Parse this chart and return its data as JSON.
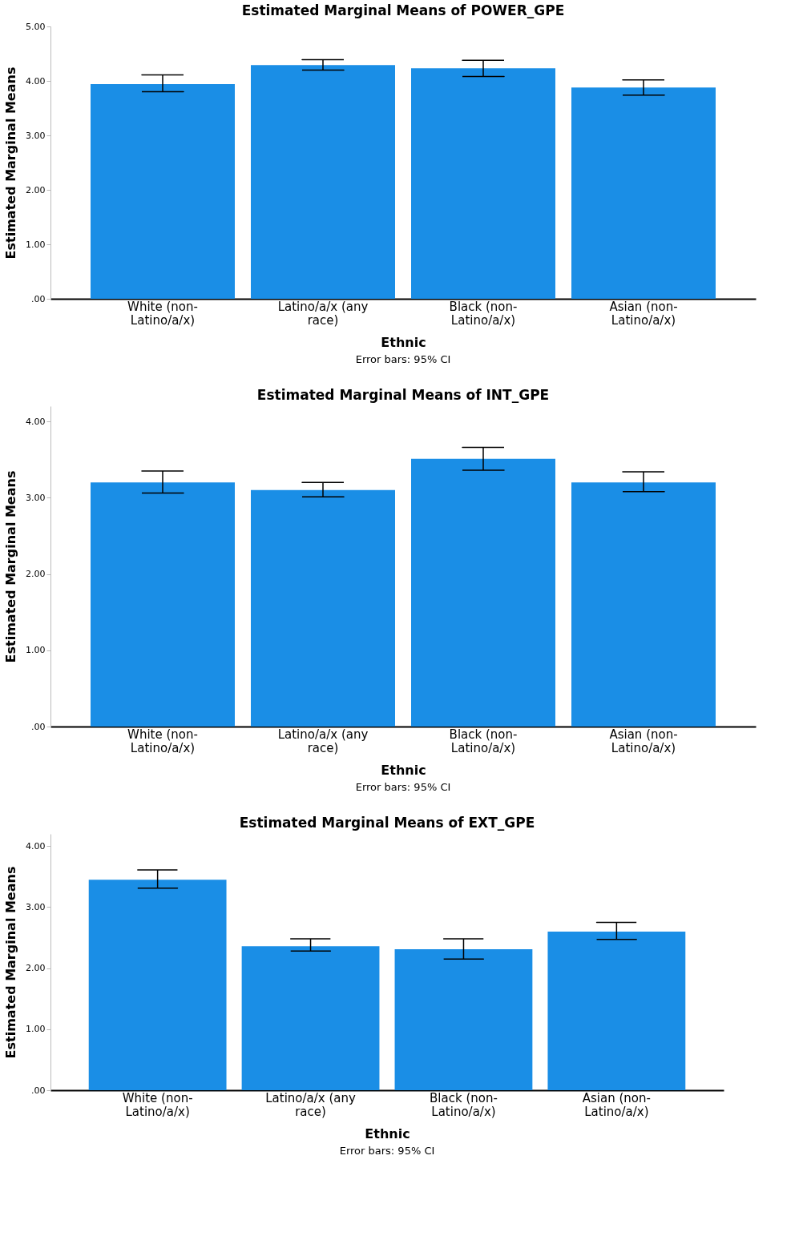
{
  "chart_data": [
    {
      "type": "bar",
      "title": "Estimated Marginal Means of POWER_GPE",
      "xlabel": "Ethnic",
      "ylabel": "Estimated Marginal Means",
      "categories": [
        "White (non-Latino/a/x)",
        "Latino/a/x (any race)",
        "Black (non-Latino/a/x)",
        "Asian (non-Latino/a/x)"
      ],
      "values": [
        3.94,
        4.29,
        4.23,
        3.88
      ],
      "errors": [
        [
          3.8,
          4.11
        ],
        [
          4.2,
          4.39
        ],
        [
          4.08,
          4.38
        ],
        [
          3.74,
          4.02
        ]
      ],
      "color": "#1a8ee6",
      "ylim": [
        0,
        5
      ],
      "yticks": [
        {
          "value": 0,
          "label": ".00"
        },
        {
          "value": 1,
          "label": "1.00"
        },
        {
          "value": 2,
          "label": "2.00"
        },
        {
          "value": 3,
          "label": "3.00"
        },
        {
          "value": 4,
          "label": "4.00"
        },
        {
          "value": 5,
          "label": "5.00"
        }
      ],
      "grid": false,
      "annotations": [
        "Error bars: 95% CI"
      ]
    },
    {
      "type": "bar",
      "title": "Estimated Marginal Means of INT_GPE",
      "xlabel": "Ethnic",
      "ylabel": "Estimated Marginal Means",
      "categories": [
        "White (non-Latino/a/x)",
        "Latino/a/x (any race)",
        "Black (non-Latino/a/x)",
        "Asian (non-Latino/a/x)"
      ],
      "values": [
        3.2,
        3.1,
        3.51,
        3.2
      ],
      "errors": [
        [
          3.06,
          3.35
        ],
        [
          3.01,
          3.2
        ],
        [
          3.36,
          3.66
        ],
        [
          3.08,
          3.34
        ]
      ],
      "color": "#1a8ee6",
      "ylim": [
        0,
        4.2
      ],
      "yticks": [
        {
          "value": 0,
          "label": ".00"
        },
        {
          "value": 1,
          "label": "1.00"
        },
        {
          "value": 2,
          "label": "2.00"
        },
        {
          "value": 3,
          "label": "3.00"
        },
        {
          "value": 4,
          "label": "4.00"
        }
      ],
      "grid": false,
      "annotations": [
        "Error bars: 95% CI"
      ]
    },
    {
      "type": "bar",
      "title": "Estimated Marginal Means of EXT_GPE",
      "xlabel": "Ethnic",
      "ylabel": "Estimated Marginal Means",
      "categories": [
        "White (non-Latino/a/x)",
        "Latino/a/x (any race)",
        "Black (non-Latino/a/x)",
        "Asian (non-Latino/a/x)"
      ],
      "values": [
        3.45,
        2.36,
        2.31,
        2.6
      ],
      "errors": [
        [
          3.31,
          3.61
        ],
        [
          2.28,
          2.48
        ],
        [
          2.15,
          2.48
        ],
        [
          2.47,
          2.75
        ]
      ],
      "color": "#1a8ee6",
      "ylim": [
        0,
        4.2
      ],
      "yticks": [
        {
          "value": 0,
          "label": ".00"
        },
        {
          "value": 1,
          "label": "1.00"
        },
        {
          "value": 2,
          "label": "2.00"
        },
        {
          "value": 3,
          "label": "3.00"
        },
        {
          "value": 4,
          "label": "4.00"
        }
      ],
      "grid": false,
      "annotations": [
        "Error bars: 95% CI"
      ]
    }
  ]
}
